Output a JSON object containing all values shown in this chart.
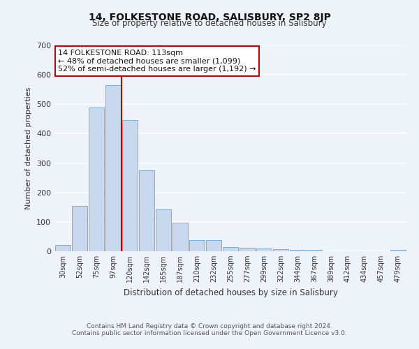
{
  "title": "14, FOLKESTONE ROAD, SALISBURY, SP2 8JP",
  "subtitle": "Size of property relative to detached houses in Salisbury",
  "xlabel": "Distribution of detached houses by size in Salisbury",
  "ylabel": "Number of detached properties",
  "bar_labels": [
    "30sqm",
    "52sqm",
    "75sqm",
    "97sqm",
    "120sqm",
    "142sqm",
    "165sqm",
    "187sqm",
    "210sqm",
    "232sqm",
    "255sqm",
    "277sqm",
    "299sqm",
    "322sqm",
    "344sqm",
    "367sqm",
    "389sqm",
    "412sqm",
    "434sqm",
    "457sqm",
    "479sqm"
  ],
  "bar_values": [
    22,
    155,
    490,
    565,
    445,
    275,
    143,
    97,
    38,
    37,
    15,
    13,
    10,
    7,
    5,
    4,
    1,
    0,
    0,
    0,
    4
  ],
  "bar_color": "#c8d9ee",
  "bar_edge_color": "#7bafd4",
  "vline_color": "#cc0000",
  "annotation_text": "14 FOLKESTONE ROAD: 113sqm\n← 48% of detached houses are smaller (1,099)\n52% of semi-detached houses are larger (1,192) →",
  "annotation_box_color": "#ffffff",
  "annotation_box_edge": "#cc0000",
  "ylim": [
    0,
    700
  ],
  "yticks": [
    0,
    100,
    200,
    300,
    400,
    500,
    600,
    700
  ],
  "footer_line1": "Contains HM Land Registry data © Crown copyright and database right 2024.",
  "footer_line2": "Contains public sector information licensed under the Open Government Licence v3.0.",
  "bg_color": "#eef2f9",
  "grid_color": "#ffffff"
}
